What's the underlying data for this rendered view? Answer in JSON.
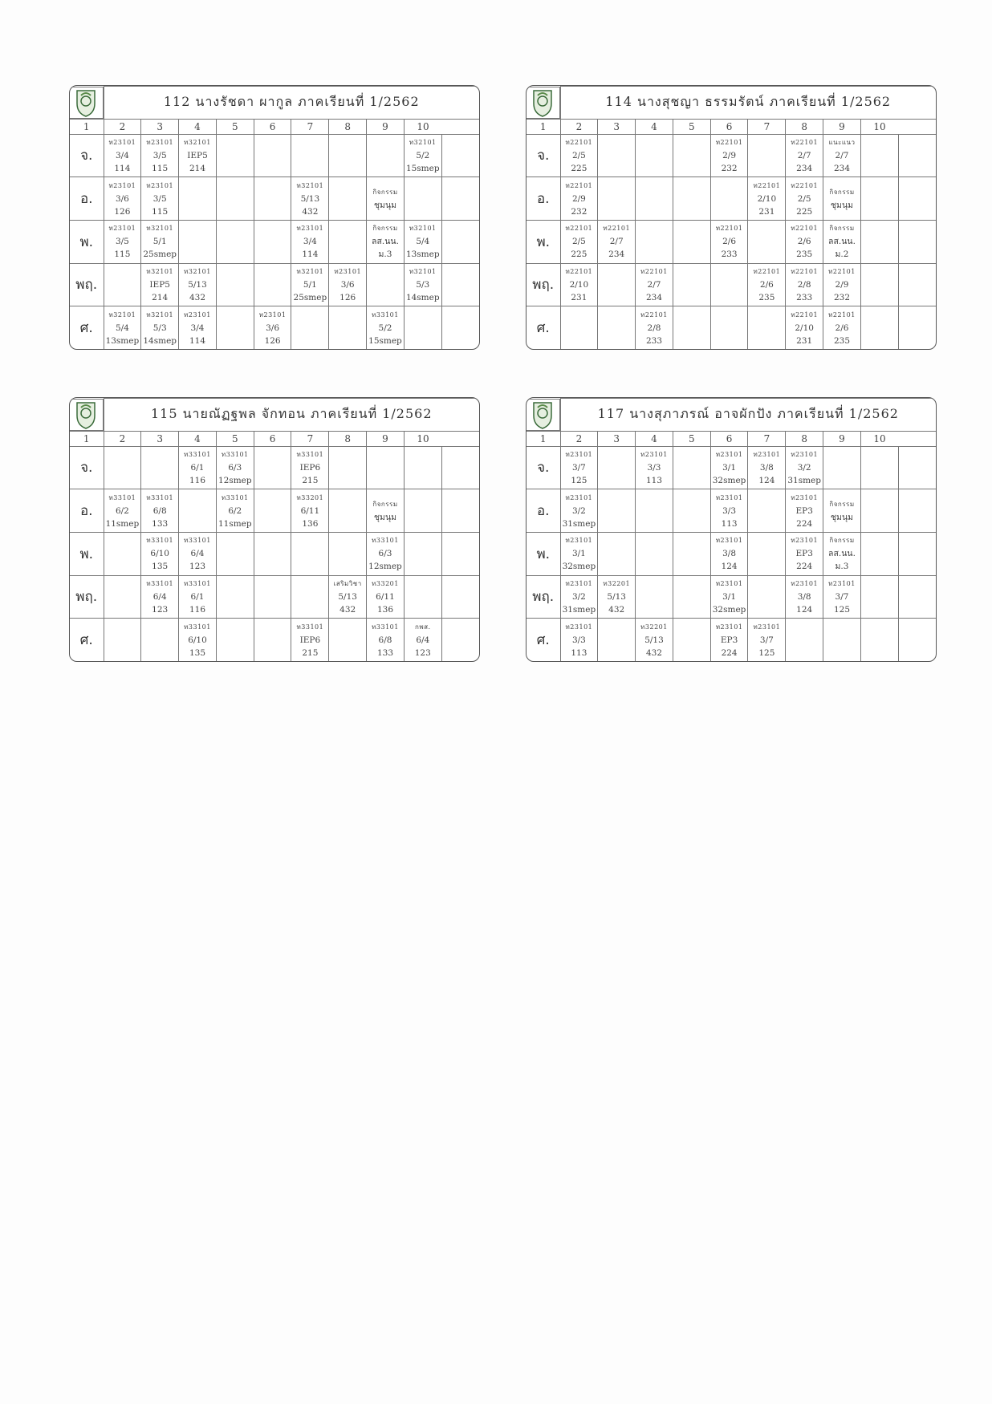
{
  "columns": [
    "1",
    "2",
    "3",
    "4",
    "5",
    "6",
    "7",
    "8",
    "9",
    "10"
  ],
  "logo_label": "school-crest",
  "accent_color": "#3a6b3a",
  "timetables": [
    {
      "title": "112  นางรัชดา ผากูล ภาคเรียนที่ 1/2562",
      "days": [
        {
          "label": "จ.",
          "cells": [
            [
              "ท23101",
              "3/4",
              "114"
            ],
            [
              "ท23101",
              "3/5",
              "115"
            ],
            [
              "ท32101",
              "IEP5",
              "214"
            ],
            [],
            [],
            [],
            [],
            [],
            [
              "ท32101",
              "5/2",
              "15smep"
            ],
            []
          ]
        },
        {
          "label": "อ.",
          "cells": [
            [
              "ท23101",
              "3/6",
              "126"
            ],
            [
              "ท23101",
              "3/5",
              "115"
            ],
            [],
            [],
            [],
            [
              "ท32101",
              "5/13",
              "432"
            ],
            [],
            [
              "กิจกรรม",
              "ชุมนุม"
            ],
            [],
            []
          ]
        },
        {
          "label": "พ.",
          "cells": [
            [
              "ท23101",
              "3/5",
              "115"
            ],
            [
              "ท32101",
              "5/1",
              "25smep"
            ],
            [],
            [],
            [],
            [
              "ท23101",
              "3/4",
              "114"
            ],
            [],
            [
              "กิจกรรม",
              "ลส.นน.",
              "ม.3"
            ],
            [
              "ท32101",
              "5/4",
              "13smep"
            ],
            []
          ]
        },
        {
          "label": "พฤ.",
          "cells": [
            [],
            [
              "ท32101",
              "IEP5",
              "214"
            ],
            [
              "ท32101",
              "5/13",
              "432"
            ],
            [],
            [],
            [
              "ท32101",
              "5/1",
              "25smep"
            ],
            [
              "ท23101",
              "3/6",
              "126"
            ],
            [],
            [
              "ท32101",
              "5/3",
              "14smep"
            ],
            []
          ]
        },
        {
          "label": "ศ.",
          "cells": [
            [
              "ท32101",
              "5/4",
              "13smep"
            ],
            [
              "ท32101",
              "5/3",
              "14smep"
            ],
            [
              "ท23101",
              "3/4",
              "114"
            ],
            [],
            [
              "ท23101",
              "3/6",
              "126"
            ],
            [],
            [],
            [
              "ท33101",
              "5/2",
              "15smep"
            ],
            [],
            []
          ]
        }
      ]
    },
    {
      "title": "114  นางสุชญา ธรรมรัตน์ ภาคเรียนที่ 1/2562",
      "days": [
        {
          "label": "จ.",
          "cells": [
            [
              "ท22101",
              "2/5",
              "225"
            ],
            [],
            [],
            [],
            [
              "ท22101",
              "2/9",
              "232"
            ],
            [],
            [
              "ท22101",
              "2/7",
              "234"
            ],
            [
              "แนะแนว",
              "2/7",
              "234"
            ],
            [],
            []
          ]
        },
        {
          "label": "อ.",
          "cells": [
            [
              "ท22101",
              "2/9",
              "232"
            ],
            [],
            [],
            [],
            [],
            [
              "ท22101",
              "2/10",
              "231"
            ],
            [
              "ท22101",
              "2/5",
              "225"
            ],
            [
              "กิจกรรม",
              "ชุมนุม"
            ],
            [],
            []
          ]
        },
        {
          "label": "พ.",
          "cells": [
            [
              "ท22101",
              "2/5",
              "225"
            ],
            [
              "ท22101",
              "2/7",
              "234"
            ],
            [],
            [],
            [
              "ท22101",
              "2/6",
              "233"
            ],
            [],
            [
              "ท22101",
              "2/6",
              "235"
            ],
            [
              "กิจกรรม",
              "ลส.นน.",
              "ม.2"
            ],
            [],
            []
          ]
        },
        {
          "label": "พฤ.",
          "cells": [
            [
              "ท22101",
              "2/10",
              "231"
            ],
            [],
            [
              "ท22101",
              "2/7",
              "234"
            ],
            [],
            [],
            [
              "ท22101",
              "2/6",
              "235"
            ],
            [
              "ท22101",
              "2/8",
              "233"
            ],
            [
              "ท22101",
              "2/9",
              "232"
            ],
            [],
            []
          ]
        },
        {
          "label": "ศ.",
          "cells": [
            [],
            [],
            [
              "ท22101",
              "2/8",
              "233"
            ],
            [],
            [],
            [],
            [
              "ท22101",
              "2/10",
              "231"
            ],
            [
              "ท22101",
              "2/6",
              "235"
            ],
            [],
            []
          ]
        }
      ]
    },
    {
      "title": "115  นายณัฏฐพล จักทอน ภาคเรียนที่ 1/2562",
      "days": [
        {
          "label": "จ.",
          "cells": [
            [],
            [],
            [
              "ท33101",
              "6/1",
              "116"
            ],
            [
              "ท33101",
              "6/3",
              "12smep"
            ],
            [],
            [
              "ท33101",
              "IEP6",
              "215"
            ],
            [],
            [],
            [],
            []
          ]
        },
        {
          "label": "อ.",
          "cells": [
            [
              "ท33101",
              "6/2",
              "11smep"
            ],
            [
              "ท33101",
              "6/8",
              "133"
            ],
            [],
            [
              "ท33101",
              "6/2",
              "11smep"
            ],
            [],
            [
              "ท33201",
              "6/11",
              "136"
            ],
            [],
            [
              "กิจกรรม",
              "ชุมนุม"
            ],
            [],
            []
          ]
        },
        {
          "label": "พ.",
          "cells": [
            [],
            [
              "ท33101",
              "6/10",
              "135"
            ],
            [
              "ท33101",
              "6/4",
              "123"
            ],
            [],
            [],
            [],
            [],
            [
              "ท33101",
              "6/3",
              "12smep"
            ],
            [],
            []
          ]
        },
        {
          "label": "พฤ.",
          "cells": [
            [],
            [
              "ท33101",
              "6/4",
              "123"
            ],
            [
              "ท33101",
              "6/1",
              "116"
            ],
            [],
            [],
            [],
            [
              "เสริมวิชา",
              "5/13",
              "432"
            ],
            [
              "ท33201",
              "6/11",
              "136"
            ],
            [],
            []
          ]
        },
        {
          "label": "ศ.",
          "cells": [
            [],
            [],
            [
              "ท33101",
              "6/10",
              "135"
            ],
            [],
            [],
            [
              "ท33101",
              "IEP6",
              "215"
            ],
            [],
            [
              "ท33101",
              "6/8",
              "133"
            ],
            [
              "กพส.",
              "6/4",
              "123"
            ],
            []
          ]
        }
      ]
    },
    {
      "title": "117  นางสุภาภรณ์ อาจผักปัง ภาคเรียนที่ 1/2562",
      "days": [
        {
          "label": "จ.",
          "cells": [
            [
              "ท23101",
              "3/7",
              "125"
            ],
            [],
            [
              "ท23101",
              "3/3",
              "113"
            ],
            [],
            [
              "ท23101",
              "3/1",
              "32smep"
            ],
            [
              "ท23101",
              "3/8",
              "124"
            ],
            [
              "ท23101",
              "3/2",
              "31smep"
            ],
            [],
            [],
            []
          ]
        },
        {
          "label": "อ.",
          "cells": [
            [
              "ท23101",
              "3/2",
              "31smep"
            ],
            [],
            [],
            [],
            [
              "ท23101",
              "3/3",
              "113"
            ],
            [],
            [
              "ท23101",
              "EP3",
              "224"
            ],
            [
              "กิจกรรม",
              "ชุมนุม"
            ],
            [],
            []
          ]
        },
        {
          "label": "พ.",
          "cells": [
            [
              "ท23101",
              "3/1",
              "32smep"
            ],
            [],
            [],
            [],
            [
              "ท23101",
              "3/8",
              "124"
            ],
            [],
            [
              "ท23101",
              "EP3",
              "224"
            ],
            [
              "กิจกรรม",
              "ลส.นน.",
              "ม.3"
            ],
            [],
            []
          ]
        },
        {
          "label": "พฤ.",
          "cells": [
            [
              "ท23101",
              "3/2",
              "31smep"
            ],
            [
              "ท32201",
              "5/13",
              "432"
            ],
            [],
            [],
            [
              "ท23101",
              "3/1",
              "32smep"
            ],
            [],
            [
              "ท23101",
              "3/8",
              "124"
            ],
            [
              "ท23101",
              "3/7",
              "125"
            ],
            [],
            []
          ]
        },
        {
          "label": "ศ.",
          "cells": [
            [
              "ท23101",
              "3/3",
              "113"
            ],
            [],
            [
              "ท32201",
              "5/13",
              "432"
            ],
            [],
            [
              "ท23101",
              "EP3",
              "224"
            ],
            [
              "ท23101",
              "3/7",
              "125"
            ],
            [],
            [],
            [],
            []
          ]
        }
      ]
    }
  ]
}
